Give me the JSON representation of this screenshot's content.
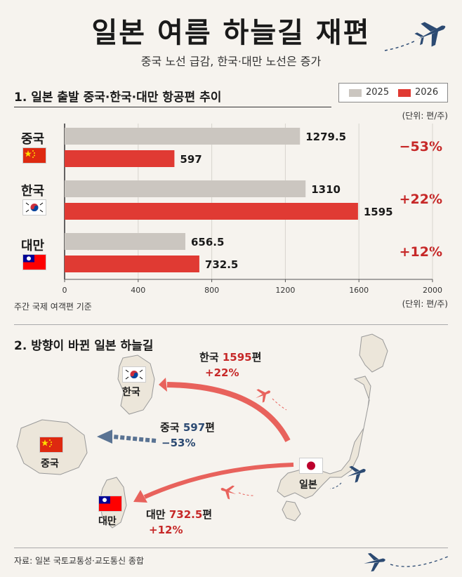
{
  "header": {
    "title": "일본 여름 하늘길 재편",
    "subtitle": "중국 노선 급감, 한국·대만 노선은 증가"
  },
  "section1": {
    "title": "1. 일본 출발 중국·한국·대만 항공편 추이",
    "unit_top": "(단위: 편/주)",
    "unit_bottom": "(단위: 편/주)",
    "note": "주간 국제 여객편 기준"
  },
  "section2": {
    "title": "2. 방향이 바뀐 일본 하늘길",
    "routes": {
      "korea": {
        "country": "한국",
        "value": "1595",
        "suffix": "편",
        "pct": "+22%"
      },
      "china": {
        "country": "중국",
        "value": "597",
        "suffix": "편",
        "pct": "−53%"
      },
      "taiwan": {
        "country": "대만",
        "value": "732.5",
        "suffix": "편",
        "pct": "+12%"
      }
    },
    "map_labels": {
      "korea": "한국",
      "china": "중국",
      "taiwan": "대만",
      "japan": "일본"
    }
  },
  "footer": {
    "source": "자료: 일본 국토교통성·교도통신 종합"
  },
  "colors": {
    "y2025": "#cbc6c0",
    "y2026": "#e03a33",
    "accent_red": "#c62828",
    "navy": "#2c4a72"
  },
  "chart_data": {
    "type": "bar",
    "orientation": "horizontal",
    "categories": [
      "중국",
      "한국",
      "대만"
    ],
    "series": [
      {
        "name": "2025",
        "values": [
          1279.5,
          1310,
          656.5
        ]
      },
      {
        "name": "2026",
        "values": [
          597,
          1595,
          732.5
        ]
      }
    ],
    "value_labels": {
      "2025": [
        "1279.5",
        "1310",
        "656.5"
      ],
      "2026": [
        "597",
        "1595",
        "732.5"
      ]
    },
    "changes": [
      "−53%",
      "+22%",
      "+12%"
    ],
    "xlim": [
      0,
      2000
    ],
    "xticks": [
      0,
      400,
      800,
      1200,
      1600,
      2000
    ],
    "xtick_labels": [
      "0",
      "400",
      "800",
      "1200",
      "1600",
      "2000"
    ],
    "grid": true,
    "legend": "top-right"
  }
}
